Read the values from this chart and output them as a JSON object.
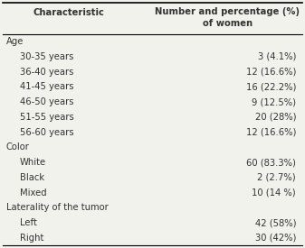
{
  "col_header_line1": "Number and percentage (%)",
  "col_header_line2": "of women",
  "col_characteristic": "Characteristic",
  "rows": [
    {
      "label": "Age",
      "value": "",
      "indent": false,
      "is_category": true
    },
    {
      "label": "30-35 years",
      "value": "3 (4.1%)",
      "indent": true,
      "is_category": false
    },
    {
      "label": "36-40 years",
      "value": "12 (16.6%)",
      "indent": true,
      "is_category": false
    },
    {
      "label": "41-45 years",
      "value": "16 (22.2%)",
      "indent": true,
      "is_category": false
    },
    {
      "label": "46-50 years",
      "value": "9 (12.5%)",
      "indent": true,
      "is_category": false
    },
    {
      "label": "51-55 years",
      "value": "20 (28%)",
      "indent": true,
      "is_category": false
    },
    {
      "label": "56-60 years",
      "value": "12 (16.6%)",
      "indent": true,
      "is_category": false
    },
    {
      "label": "Color",
      "value": "",
      "indent": false,
      "is_category": true
    },
    {
      "label": "White",
      "value": "60 (83.3%)",
      "indent": true,
      "is_category": false
    },
    {
      "label": "Black",
      "value": "2 (2.7%)",
      "indent": true,
      "is_category": false
    },
    {
      "label": "Mixed",
      "value": "10 (14 %)",
      "indent": true,
      "is_category": false
    },
    {
      "label": "Laterality of the tumor",
      "value": "",
      "indent": false,
      "is_category": true
    },
    {
      "label": "Left",
      "value": "42 (58%)",
      "indent": true,
      "is_category": false
    },
    {
      "label": "Right",
      "value": "30 (42%)",
      "indent": true,
      "is_category": false
    }
  ],
  "background_color": "#f2f2ed",
  "text_color": "#333333",
  "header_fontsize": 7.2,
  "body_fontsize": 7.2,
  "category_fontsize": 7.2
}
